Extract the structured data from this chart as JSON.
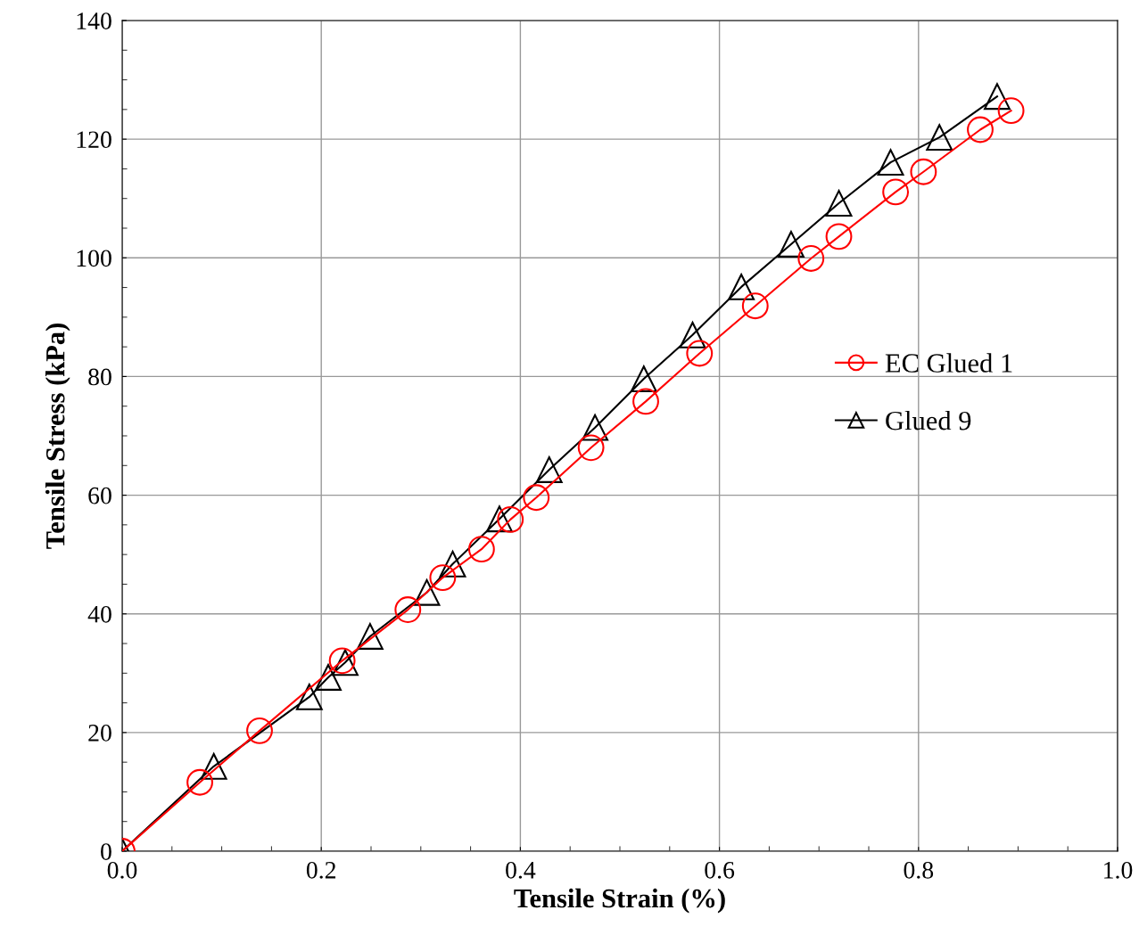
{
  "chart_data": {
    "type": "line",
    "xlabel": "Tensile Strain (%)",
    "ylabel": "Tensile Stress (kPa)",
    "xlim": [
      0,
      1.0
    ],
    "xticks": [
      {
        "value": 0,
        "label": "0.0"
      },
      0.2,
      0.4,
      0.6,
      0.8,
      {
        "value": 1.0,
        "label": "1.0"
      }
    ],
    "ylim": [
      0,
      140
    ],
    "yticks": [
      0,
      20,
      40,
      60,
      80,
      100,
      120,
      140
    ],
    "grid": true,
    "legend": "right",
    "series": [
      {
        "name": "EC Glued 1",
        "color": "#ff0000",
        "marker": "circle",
        "x": [
          0,
          0.078,
          0.138,
          0.221,
          0.287,
          0.322,
          0.361,
          0.39,
          0.416,
          0.471,
          0.526,
          0.58,
          0.636,
          0.692,
          0.72,
          0.777,
          0.805,
          0.862,
          0.893
        ],
        "values": [
          0,
          11.6,
          20.3,
          32.1,
          40.7,
          46.1,
          50.9,
          55.9,
          59.6,
          68.0,
          75.8,
          83.9,
          91.9,
          99.9,
          103.6,
          111.1,
          114.5,
          121.6,
          124.8
        ]
      },
      {
        "name": "Glued 9",
        "color": "#000000",
        "marker": "triangle",
        "x": [
          0,
          0.092,
          0.188,
          0.207,
          0.224,
          0.249,
          0.306,
          0.332,
          0.379,
          0.429,
          0.475,
          0.524,
          0.573,
          0.622,
          0.672,
          0.72,
          0.772,
          0.821,
          0.879
        ],
        "values": [
          0,
          14.3,
          26.0,
          29.3,
          31.8,
          36.2,
          43.6,
          48.4,
          56.0,
          64.3,
          71.4,
          79.6,
          87.0,
          95.1,
          102.3,
          109.2,
          116.1,
          120.3,
          127.2
        ]
      }
    ]
  }
}
